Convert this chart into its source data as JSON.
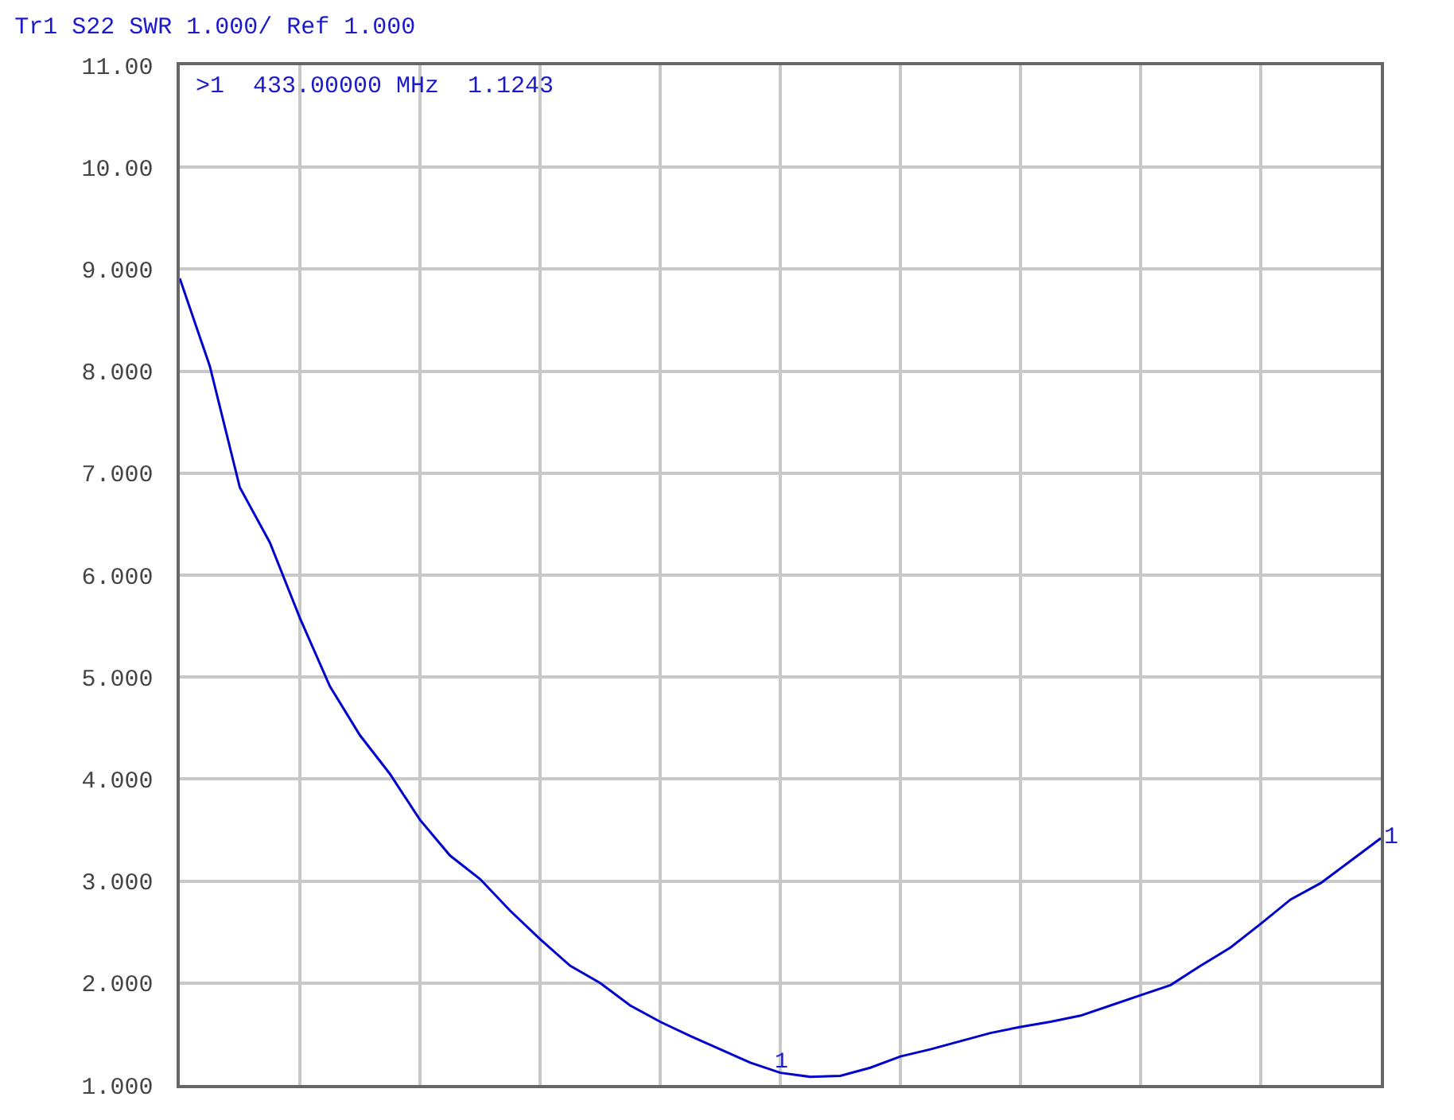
{
  "chart_data": {
    "type": "line",
    "title": "Tr1 S22 SWR 1.000/ Ref 1.000",
    "categories": [
      null,
      null,
      null,
      null,
      null,
      null,
      null,
      null,
      null,
      null,
      null,
      null,
      null,
      null,
      null,
      null,
      null,
      null,
      null,
      null,
      null,
      null,
      null,
      null,
      null,
      null,
      null,
      null,
      null,
      null,
      null,
      null,
      null,
      null,
      null,
      null,
      null,
      null,
      null,
      null,
      null
    ],
    "series": [
      {
        "color": "#0000cc",
        "values": [
          8.91,
          8.05,
          6.86,
          6.32,
          5.58,
          4.91,
          4.43,
          4.05,
          3.6,
          3.25,
          3.02,
          2.71,
          2.43,
          2.17,
          2.0,
          1.78,
          1.62,
          1.48,
          1.35,
          1.22,
          1.12,
          1.08,
          1.09,
          1.17,
          1.28,
          1.35,
          1.43,
          1.51,
          1.57,
          1.62,
          1.68,
          1.78,
          1.88,
          1.98,
          2.17,
          2.35,
          2.58,
          2.82,
          2.98,
          3.2,
          3.42
        ]
      }
    ],
    "ylim": [
      1,
      11
    ],
    "yticks": [
      {
        "value": 1,
        "label": "1.000"
      },
      {
        "value": 2,
        "label": "2.000"
      },
      {
        "value": 3,
        "label": "3.000"
      },
      {
        "value": 4,
        "label": "4.000"
      },
      {
        "value": 5,
        "label": "5.000"
      },
      {
        "value": 6,
        "label": "6.000"
      },
      {
        "value": 7,
        "label": "7.000"
      },
      {
        "value": 8,
        "label": "8.000"
      },
      {
        "value": 9,
        "label": "9.000"
      },
      {
        "value": 10,
        "label": "10.00"
      },
      {
        "value": 11,
        "label": "11.00"
      }
    ],
    "annotations": [
      ">1  433.00000 MHz  1.1243",
      "1",
      {
        "text": "1",
        "y": 1.1243
      }
    ],
    "grid": true,
    "legend": false,
    "tick_labels": "y",
    "marker": "none",
    "line_style": "solid"
  }
}
